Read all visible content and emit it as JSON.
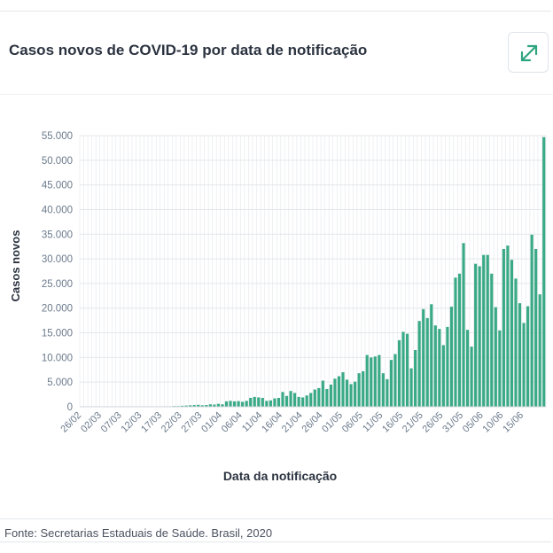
{
  "header": {
    "title": "Casos novos de COVID-19 por data de notificação",
    "expand_icon": "expand-icon"
  },
  "colors": {
    "bar": "#3aaa86",
    "grid": "#e4e7eb",
    "tick_text": "#6b7a8c",
    "axis_title": "#2b3340",
    "accent": "#2fa57f"
  },
  "chart_data": {
    "type": "bar",
    "title": "Casos novos de COVID-19 por data de notificação",
    "xlabel": "Data da notificação",
    "ylabel": "Casos novos",
    "ylim": [
      0,
      55000
    ],
    "y_ticks": [
      0,
      5000,
      10000,
      15000,
      20000,
      25000,
      30000,
      35000,
      40000,
      45000,
      50000,
      55000
    ],
    "y_tick_labels": [
      "0",
      "5.000",
      "10.000",
      "15.000",
      "20.000",
      "25.000",
      "30.000",
      "35.000",
      "40.000",
      "45.000",
      "50.000",
      "55.000"
    ],
    "x_tick_labels": [
      "26/02",
      "02/03",
      "07/03",
      "12/03",
      "17/03",
      "22/03",
      "27/03",
      "01/04",
      "06/04",
      "11/04",
      "16/04",
      "21/04",
      "26/04",
      "01/05",
      "06/05",
      "11/05",
      "16/05",
      "21/05",
      "26/05",
      "31/05",
      "05/06",
      "10/06",
      "15/06"
    ],
    "grid": true,
    "values": [
      0,
      0,
      0,
      0,
      0,
      0,
      0,
      0,
      0,
      0,
      0,
      0,
      0,
      0,
      0,
      0,
      0,
      0,
      0,
      0,
      0,
      100,
      100,
      150,
      150,
      200,
      250,
      300,
      350,
      400,
      300,
      350,
      500,
      450,
      600,
      500,
      1100,
      1200,
      1100,
      1150,
      1000,
      1200,
      1800,
      2000,
      1900,
      1800,
      1200,
      1300,
      1700,
      1800,
      3000,
      2200,
      3200,
      2800,
      2000,
      1900,
      2300,
      2800,
      3500,
      3800,
      5300,
      3600,
      4500,
      5700,
      6200,
      7000,
      5500,
      4600,
      5100,
      6800,
      7200,
      10500,
      10000,
      10200,
      10500,
      6800,
      5600,
      9500,
      10700,
      13500,
      15200,
      14800,
      7800,
      11500,
      17400,
      19800,
      18000,
      20800,
      16500,
      15800,
      12500,
      16200,
      20300,
      26200,
      27000,
      33200,
      15600,
      12200,
      29000,
      28500,
      30800,
      30800,
      27000,
      20200,
      15500,
      32000,
      32700,
      29800,
      26000,
      21000,
      17000,
      20400,
      34900,
      32000,
      22800,
      54700
    ]
  },
  "footer": {
    "source": "Fonte: Secretarias Estaduais de Saúde. Brasil, 2020"
  }
}
